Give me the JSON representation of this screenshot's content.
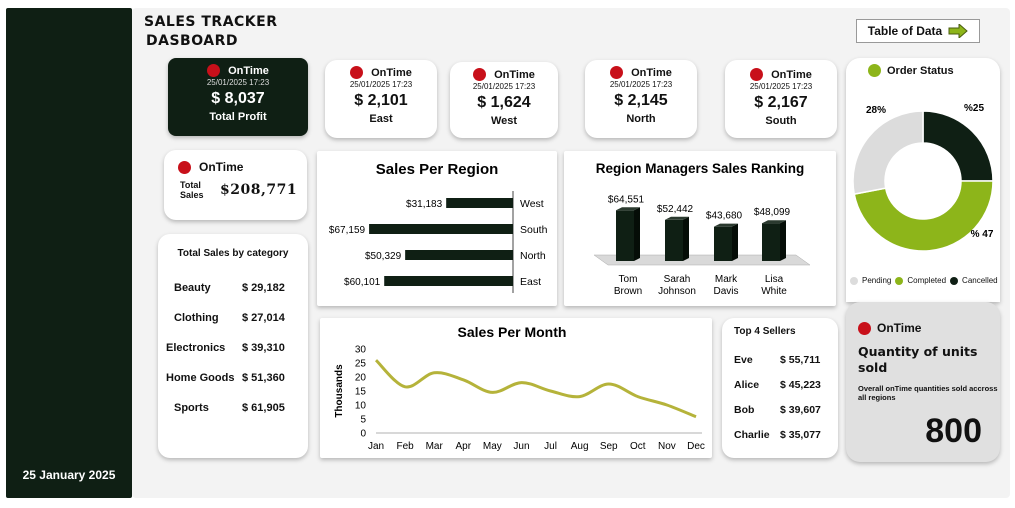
{
  "sidebar": {
    "date": "25 January 2025"
  },
  "header": {
    "title_line1": "SALES TRACKER",
    "title_line2": "DASBOARD",
    "table_button": "Table of Data"
  },
  "kpis": {
    "profit": {
      "status": "OnTime",
      "time": "25/01/2025 17:23",
      "value": "$ 8,037",
      "label": "Total Profit"
    },
    "east": {
      "status": "OnTime",
      "time": "25/01/2025 17:23",
      "value": "$ 2,101",
      "label": "East"
    },
    "west": {
      "status": "OnTime",
      "time": "25/01/2025 17:23",
      "value": "$ 1,624",
      "label": "West"
    },
    "north": {
      "status": "OnTime",
      "time": "25/01/2025 17:23",
      "value": "$ 2,145",
      "label": "North"
    },
    "south": {
      "status": "OnTime",
      "time": "25/01/2025 17:23",
      "value": "$ 2,167",
      "label": "South"
    }
  },
  "total_sales": {
    "status": "OnTime",
    "label": "Total Sales",
    "value": "$208,771"
  },
  "categories": {
    "title": "Total Sales by category",
    "items": [
      {
        "name": "Beauty",
        "value": "$ 29,182"
      },
      {
        "name": "Clothing",
        "value": "$ 27,014"
      },
      {
        "name": "Electronics",
        "value": "$ 39,310"
      },
      {
        "name": "Home Goods",
        "value": "$ 51,360"
      },
      {
        "name": "Sports",
        "value": "$ 61,905"
      }
    ]
  },
  "top_sellers": {
    "title": "Top 4 Sellers",
    "items": [
      {
        "name": "Eve",
        "value": "$ 55,711"
      },
      {
        "name": "Alice",
        "value": "$ 45,223"
      },
      {
        "name": "Bob",
        "value": "$ 39,607"
      },
      {
        "name": "Charlie",
        "value": "$ 35,077"
      }
    ]
  },
  "quantity": {
    "status": "OnTime",
    "title": "Quantity of units sold",
    "subtitle": "Overall onTime  quantities sold accross all regions",
    "value": "800"
  },
  "colors": {
    "dark": "#0f1f14",
    "accent": "#8db51a",
    "status_red": "#c8101a",
    "line": "#b5b33a",
    "grey": "#dcdcdc"
  },
  "icons": {
    "table_button": "arrow-right-icon"
  },
  "chart_data": [
    {
      "type": "bar",
      "title": "Sales Per Region",
      "orientation": "horizontal",
      "categories": [
        "West",
        "South",
        "North",
        "East"
      ],
      "values": [
        31183,
        67159,
        50329,
        60101
      ],
      "value_labels": [
        "$31,183",
        "$67,159",
        "$50,329",
        "$60,101"
      ]
    },
    {
      "type": "bar",
      "title": "Region Managers Sales Ranking",
      "categories": [
        "Tom Brown",
        "Sarah Johnson",
        "Mark Davis",
        "Lisa White"
      ],
      "values": [
        64551,
        52442,
        43680,
        48099
      ],
      "value_labels": [
        "$64,551",
        "$52,442",
        "$43,680",
        "$48,099"
      ]
    },
    {
      "type": "line",
      "title": "Sales Per Month",
      "ylabel": "Thousands",
      "categories": [
        "Jan",
        "Feb",
        "Mar",
        "Apr",
        "May",
        "Jun",
        "Jul",
        "Aug",
        "Sep",
        "Oct",
        "Nov",
        "Dec"
      ],
      "values": [
        26,
        16.5,
        21.5,
        19,
        14.5,
        18,
        15,
        13,
        17.5,
        13,
        10,
        5.8
      ],
      "ylim": [
        0,
        30
      ],
      "yticks": [
        "0",
        "5",
        "10",
        "15",
        "20",
        "25",
        "30"
      ]
    },
    {
      "type": "pie",
      "title": "Order Status",
      "categories": [
        "Pending",
        "Completed",
        "Cancelled"
      ],
      "values": [
        28,
        47,
        25
      ],
      "value_labels": [
        "28%",
        "% 47",
        "%25"
      ]
    }
  ]
}
